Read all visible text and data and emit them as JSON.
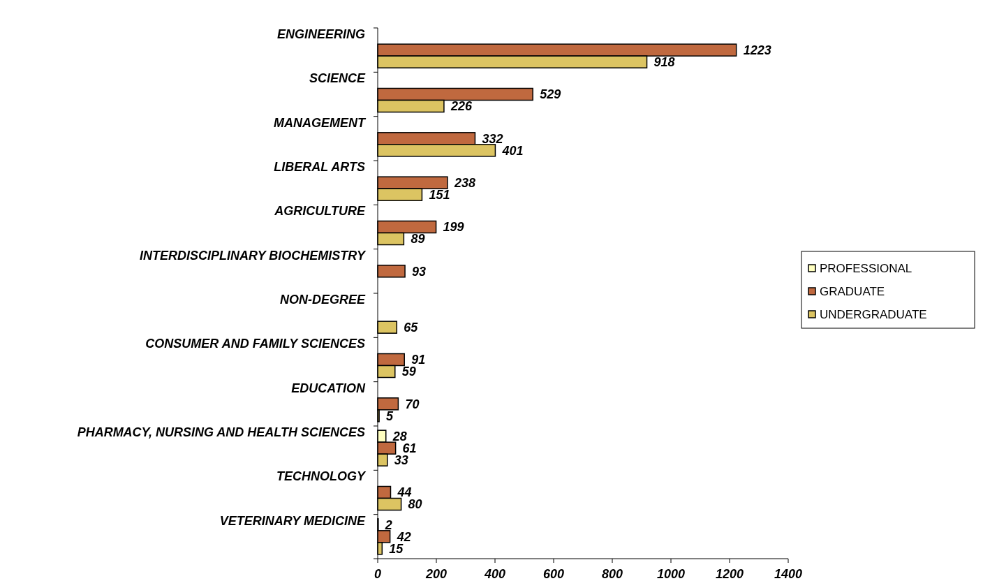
{
  "chart_data": {
    "type": "bar",
    "orientation": "horizontal",
    "categories": [
      "ENGINEERING",
      "SCIENCE",
      "MANAGEMENT",
      "LIBERAL ARTS",
      "AGRICULTURE",
      "INTERDISCIPLINARY BIOCHEMISTRY",
      "NON-DEGREE",
      "CONSUMER AND FAMILY SCIENCES",
      "EDUCATION",
      "PHARMACY, NURSING AND HEALTH SCIENCES",
      "TECHNOLOGY",
      "VETERINARY MEDICINE"
    ],
    "series": [
      {
        "name": "PROFESSIONAL",
        "color": "#ffffc0",
        "values": [
          null,
          null,
          null,
          null,
          null,
          null,
          null,
          null,
          null,
          28,
          null,
          2
        ]
      },
      {
        "name": "GRADUATE",
        "color": "#c0693f",
        "values": [
          1223,
          529,
          332,
          238,
          199,
          93,
          null,
          91,
          70,
          61,
          44,
          42
        ]
      },
      {
        "name": "UNDERGRADUATE",
        "color": "#dcc462",
        "values": [
          918,
          226,
          401,
          151,
          89,
          null,
          65,
          59,
          5,
          33,
          80,
          15
        ]
      }
    ],
    "xlim": [
      0,
      1400
    ],
    "xticks": [
      0,
      200,
      400,
      600,
      800,
      1000,
      1200,
      1400
    ],
    "data_labels": true,
    "legend": "right",
    "grid": false
  }
}
